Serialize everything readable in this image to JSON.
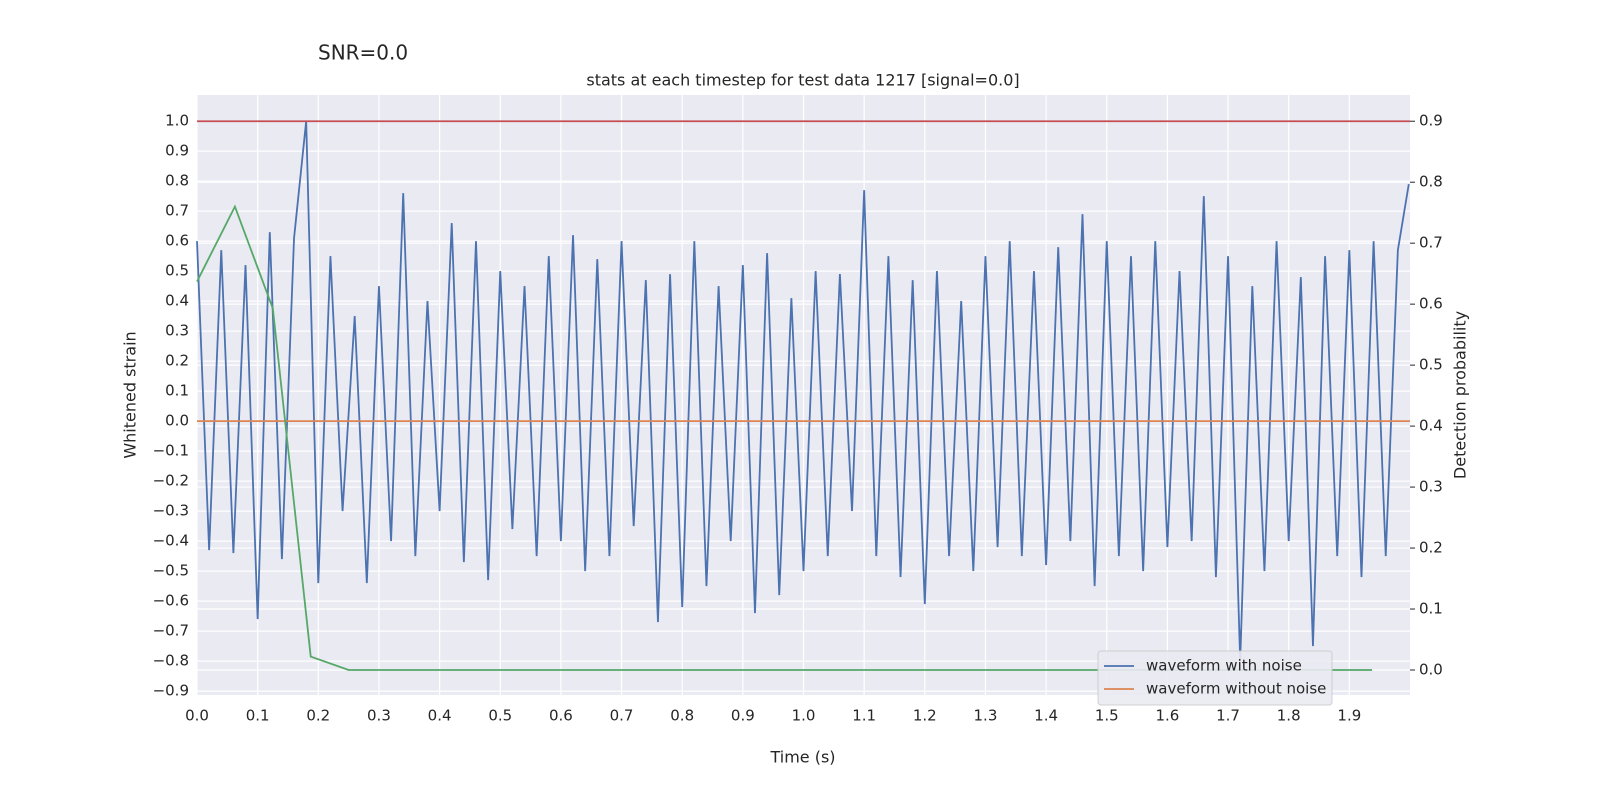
{
  "chart_data": {
    "type": "line",
    "suptitle": "SNR=0.0",
    "title": "stats at each timestep for test data 1217 [signal=0.0]",
    "x_label": "Time (s)",
    "y_label": "Whitened strain",
    "y2_label": "Detection probability",
    "xlim": [
      0,
      2.0
    ],
    "ylim": [
      -0.913,
      1.087
    ],
    "y2lim": [
      -0.041,
      0.943
    ],
    "xticks": [
      {
        "value": 0,
        "label": "0.0"
      },
      0.1,
      0.2,
      0.3,
      0.4,
      0.5,
      0.6,
      0.7,
      0.8,
      0.9,
      {
        "value": 1,
        "label": "1.0"
      },
      1.1,
      1.2,
      1.3,
      1.4,
      1.5,
      1.6,
      1.7,
      1.8,
      1.9
    ],
    "yticks": [
      {
        "value": -0.9,
        "label": "−0.9"
      },
      {
        "value": -0.8,
        "label": "−0.8"
      },
      {
        "value": -0.7,
        "label": "−0.7"
      },
      {
        "value": -0.6,
        "label": "−0.6"
      },
      {
        "value": -0.5,
        "label": "−0.5"
      },
      {
        "value": -0.4,
        "label": "−0.4"
      },
      {
        "value": -0.3,
        "label": "−0.3"
      },
      {
        "value": -0.2,
        "label": "−0.2"
      },
      {
        "value": -0.1,
        "label": "−0.1"
      },
      {
        "value": 0,
        "label": "0.0"
      },
      0.1,
      0.2,
      0.3,
      0.4,
      0.5,
      0.6,
      0.7,
      0.8,
      0.9,
      {
        "value": 1,
        "label": "1.0"
      }
    ],
    "y2ticks": [
      {
        "value": 0,
        "label": "0.0"
      },
      0.1,
      0.2,
      0.3,
      0.4,
      0.5,
      0.6,
      0.7,
      0.8,
      0.9
    ],
    "grid": true,
    "legend": "lower right",
    "hline": {
      "value": 0.9,
      "axis": "y2",
      "color": "#c44e52"
    },
    "series": [
      {
        "name": "waveform with noise",
        "color": "#4c72b0",
        "x": [
          0,
          0.02,
          0.04,
          0.06,
          0.08,
          0.1,
          0.12,
          0.14,
          0.16,
          0.18,
          0.2,
          0.22,
          0.24,
          0.26,
          0.28,
          0.3,
          0.32,
          0.34,
          0.36,
          0.38,
          0.4,
          0.42,
          0.44,
          0.46,
          0.48,
          0.5,
          0.52,
          0.54,
          0.56,
          0.58,
          0.6,
          0.62,
          0.64,
          0.66,
          0.68,
          0.7,
          0.72,
          0.74,
          0.76,
          0.78,
          0.8,
          0.82,
          0.84,
          0.86,
          0.88,
          0.9,
          0.92,
          0.94,
          0.96,
          0.98,
          1,
          1.02,
          1.04,
          1.06,
          1.08,
          1.1,
          1.12,
          1.14,
          1.16,
          1.18,
          1.2,
          1.22,
          1.24,
          1.26,
          1.28,
          1.3,
          1.32,
          1.34,
          1.36,
          1.38,
          1.4,
          1.42,
          1.44,
          1.46,
          1.48,
          1.5,
          1.52,
          1.54,
          1.56,
          1.58,
          1.6,
          1.62,
          1.64,
          1.66,
          1.68,
          1.7,
          1.72,
          1.74,
          1.76,
          1.78,
          1.8,
          1.82,
          1.84,
          1.86,
          1.88,
          1.9,
          1.92,
          1.94,
          1.96,
          1.98,
          1.998
        ],
        "values": [
          0.6,
          -0.43,
          0.57,
          -0.44,
          0.52,
          -0.66,
          0.63,
          -0.46,
          0.61,
          1.0,
          -0.54,
          0.55,
          -0.3,
          0.35,
          -0.54,
          0.45,
          -0.4,
          0.76,
          -0.45,
          0.4,
          -0.3,
          0.66,
          -0.47,
          0.6,
          -0.53,
          0.5,
          -0.36,
          0.45,
          -0.45,
          0.55,
          -0.4,
          0.62,
          -0.5,
          0.54,
          -0.45,
          0.6,
          -0.35,
          0.47,
          -0.67,
          0.49,
          -0.62,
          0.6,
          -0.55,
          0.45,
          -0.4,
          0.52,
          -0.64,
          0.56,
          -0.58,
          0.41,
          -0.5,
          0.5,
          -0.45,
          0.49,
          -0.3,
          0.77,
          -0.45,
          0.55,
          -0.52,
          0.47,
          -0.61,
          0.5,
          -0.45,
          0.4,
          -0.5,
          0.55,
          -0.42,
          0.6,
          -0.45,
          0.5,
          -0.48,
          0.58,
          -0.4,
          0.69,
          -0.55,
          0.6,
          -0.45,
          0.55,
          -0.5,
          0.6,
          -0.42,
          0.5,
          -0.4,
          0.75,
          -0.52,
          0.55,
          -0.8,
          0.45,
          -0.5,
          0.6,
          -0.4,
          0.48,
          -0.75,
          0.55,
          -0.45,
          0.57,
          -0.52,
          0.6,
          -0.45,
          0.57,
          0.79
        ]
      },
      {
        "name": "waveform without noise",
        "color": "#dd8452",
        "x": [
          0,
          2.0
        ],
        "values": [
          0,
          0
        ]
      },
      {
        "color": "#55a868",
        "axis": "y2",
        "x": [
          0,
          0.0625,
          0.125,
          0.1875,
          0.25,
          0.3125,
          0.375,
          0.4375,
          0.5,
          0.5625,
          0.625,
          0.6875,
          0.75,
          0.8125,
          0.875,
          0.9375,
          1,
          1.0625,
          1.125,
          1.1875,
          1.25,
          1.3125,
          1.375,
          1.4375,
          1.5,
          1.5625,
          1.625,
          1.6875,
          1.75,
          1.8125,
          1.875,
          1.9375
        ],
        "values": [
          0.637,
          0.76,
          0.593,
          0.022,
          0,
          0,
          0,
          0,
          0,
          0,
          0,
          0,
          0,
          0,
          0,
          0,
          0,
          0,
          0,
          0,
          0,
          0,
          0,
          0,
          0,
          0,
          0,
          0,
          0,
          0,
          0,
          0
        ]
      }
    ]
  }
}
